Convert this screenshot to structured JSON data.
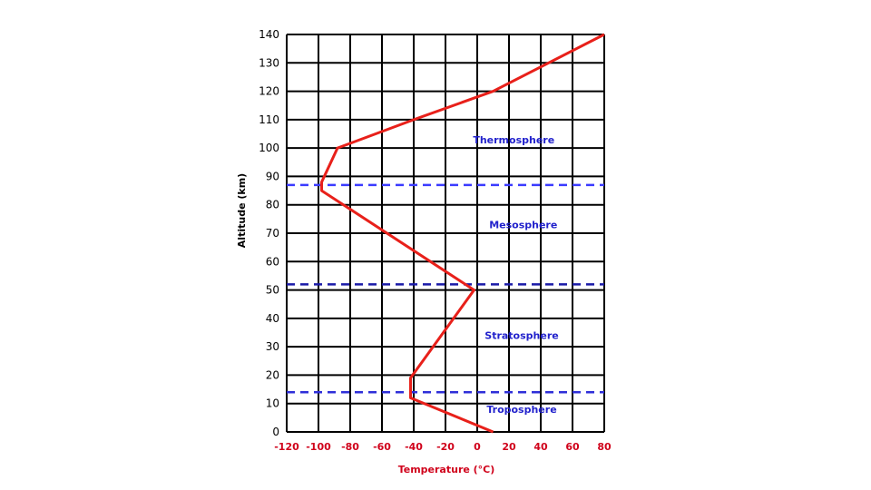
{
  "chart_data": {
    "type": "line",
    "xlabel": "Temperature (°C)",
    "ylabel": "Altitude (km)",
    "xlim": [
      -120,
      80
    ],
    "ylim": [
      0,
      140
    ],
    "x_ticks": [
      -120,
      -100,
      -80,
      -60,
      -40,
      -20,
      0,
      20,
      40,
      60,
      80
    ],
    "y_ticks": [
      0,
      10,
      20,
      30,
      40,
      50,
      60,
      70,
      80,
      90,
      100,
      110,
      120,
      130,
      140
    ],
    "grid": true,
    "series": [
      {
        "color": "#e8201a",
        "points": [
          {
            "x": 10,
            "y": 0
          },
          {
            "x": -42,
            "y": 12
          },
          {
            "x": -42,
            "y": 19
          },
          {
            "x": -2,
            "y": 50
          },
          {
            "x": -98,
            "y": 85
          },
          {
            "x": -98,
            "y": 88
          },
          {
            "x": -88,
            "y": 100
          },
          {
            "x": -40,
            "y": 110
          },
          {
            "x": 10,
            "y": 120
          },
          {
            "x": 80,
            "y": 140
          }
        ]
      }
    ],
    "boundaries": [
      {
        "y": 14,
        "color": "#2f2fd8"
      },
      {
        "y": 52,
        "color": "#1a1aa8"
      },
      {
        "y": 87,
        "color": "#3b3bff"
      }
    ],
    "annotations": [
      {
        "text": "Thermosphere",
        "x": 23,
        "y": 103
      },
      {
        "text": "Mesosphere",
        "x": 29,
        "y": 73
      },
      {
        "text": "Stratosphere",
        "x": 28,
        "y": 34
      },
      {
        "text": "Troposphere",
        "x": 28,
        "y": 8
      }
    ]
  }
}
